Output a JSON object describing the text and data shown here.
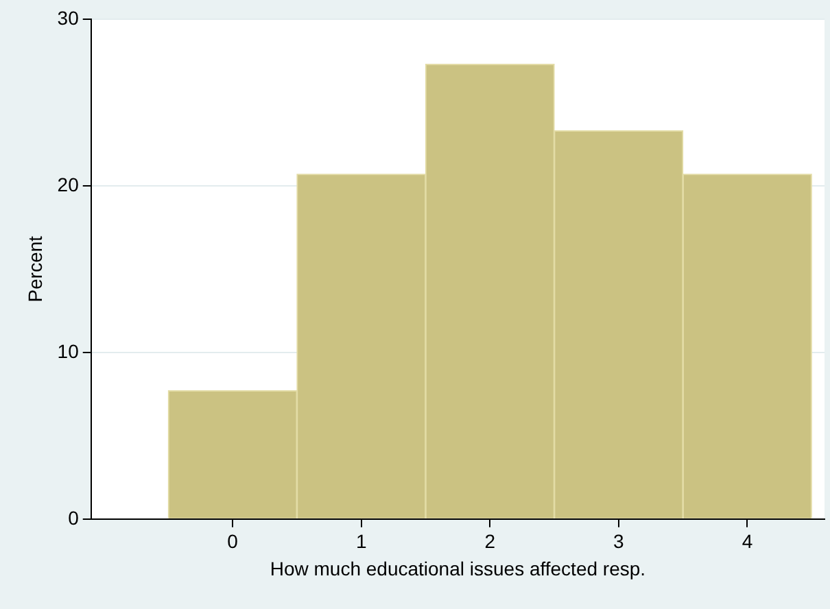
{
  "chart_data": {
    "type": "histogram",
    "xlabel": "How much educational issues affected resp.",
    "ylabel": "Percent",
    "bins": [
      -0.5,
      0.5,
      1.5,
      2.5,
      3.5,
      4.5
    ],
    "values": [
      7.7,
      20.7,
      27.3,
      23.3,
      20.7
    ],
    "color": "#cbc282",
    "xlim": [
      -1.1,
      4.6
    ],
    "xticks": [
      0,
      1,
      2,
      3,
      4
    ],
    "ylim": [
      0,
      30
    ],
    "yticks": [
      0,
      10,
      20,
      30
    ],
    "grid": "y",
    "legend": false
  }
}
